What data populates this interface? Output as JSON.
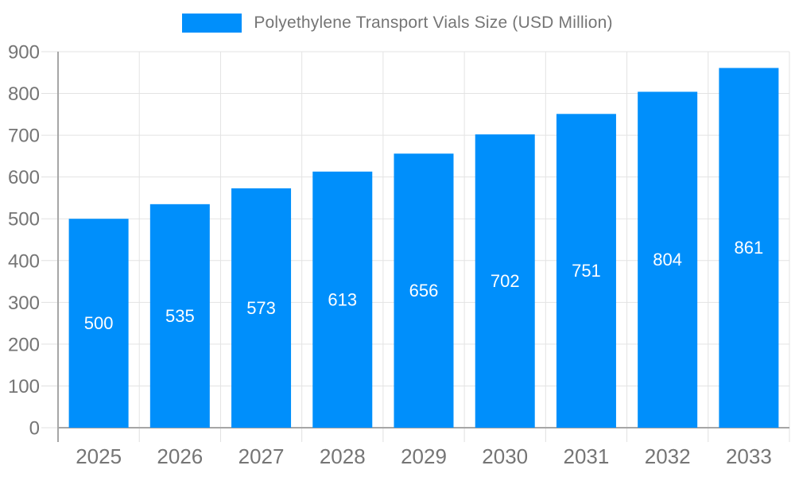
{
  "legend": {
    "label": "Polyethylene Transport Vials Size (USD Million)"
  },
  "chart_data": {
    "type": "bar",
    "title": "Polyethylene Transport Vials Size (USD Million)",
    "series_name": "Polyethylene Transport Vials Size (USD Million)",
    "categories": [
      "2025",
      "2026",
      "2027",
      "2028",
      "2029",
      "2030",
      "2031",
      "2032",
      "2033"
    ],
    "values": [
      500,
      535,
      573,
      613,
      656,
      702,
      751,
      804,
      861
    ],
    "xlabel": "",
    "ylabel": "",
    "ylim": [
      0,
      900
    ],
    "yticks": [
      0,
      100,
      200,
      300,
      400,
      500,
      600,
      700,
      800,
      900
    ],
    "grid": true,
    "legend_position": "top",
    "colors": {
      "bar": "#008FFB",
      "value_label": "#ffffff",
      "tick_label": "#757575",
      "gridline": "#e3e3e3",
      "tick_mark": "#e0e0e0",
      "axis_line": "#a6a6a6"
    }
  }
}
